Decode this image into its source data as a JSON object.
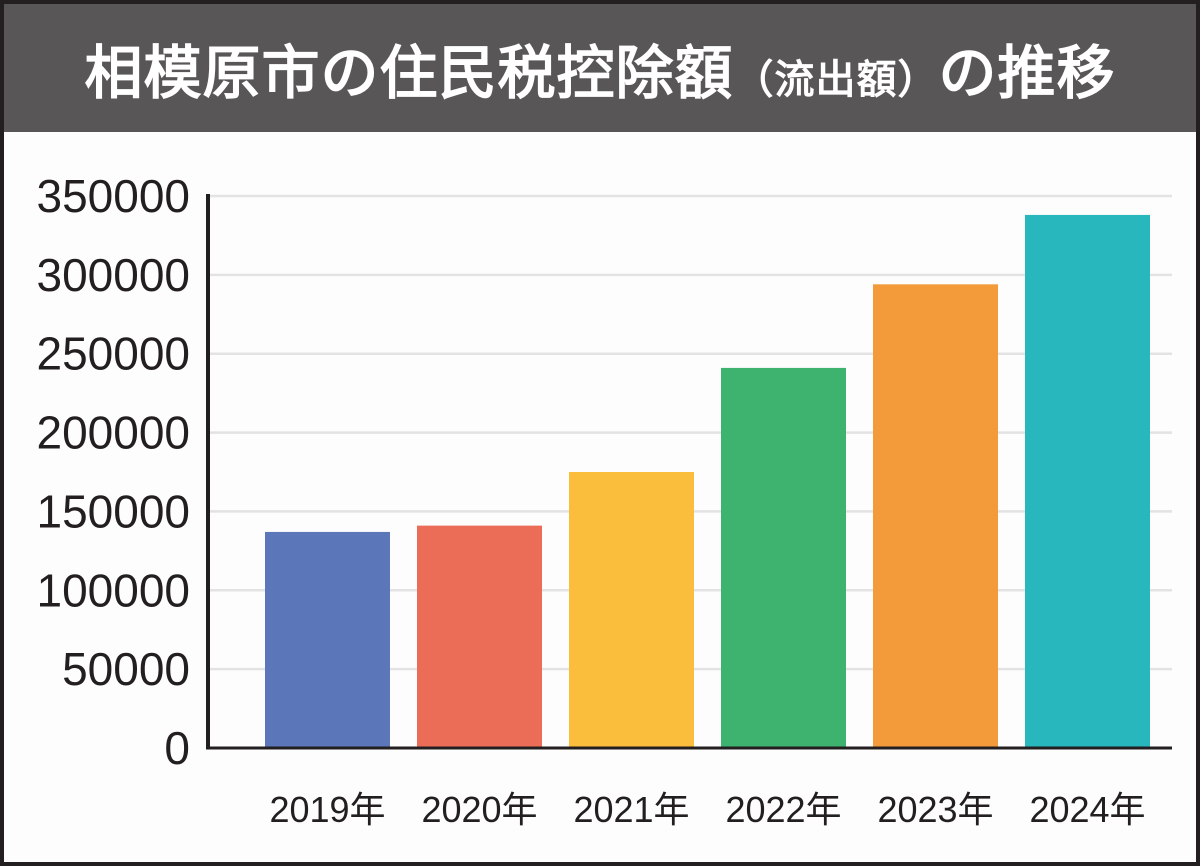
{
  "chart_data": {
    "type": "bar",
    "title": "相模原市の住民税控除額",
    "title_sub": "（流出額）",
    "title_end": "の推移",
    "xlabel": "",
    "ylabel": "",
    "categories": [
      "2019年",
      "2020年",
      "2021年",
      "2022年",
      "2023年",
      "2024年"
    ],
    "values": [
      137000,
      141000,
      175000,
      241000,
      294000,
      338000
    ],
    "colors": [
      "#5b77ba",
      "#ec6d57",
      "#fabd3c",
      "#3eb370",
      "#f39a3a",
      "#27b7bd"
    ],
    "ylim": [
      0,
      350000
    ],
    "yticks": [
      0,
      50000,
      100000,
      150000,
      200000,
      250000,
      300000,
      350000
    ],
    "ytick_labels": [
      "0",
      "50000",
      "100000",
      "150000",
      "200000",
      "250000",
      "300000",
      "350000"
    ],
    "grid": true,
    "legend": "none"
  },
  "colors": {
    "titlebar": "#595657",
    "grid": "#e3e3e3",
    "axis": "#231f20"
  }
}
